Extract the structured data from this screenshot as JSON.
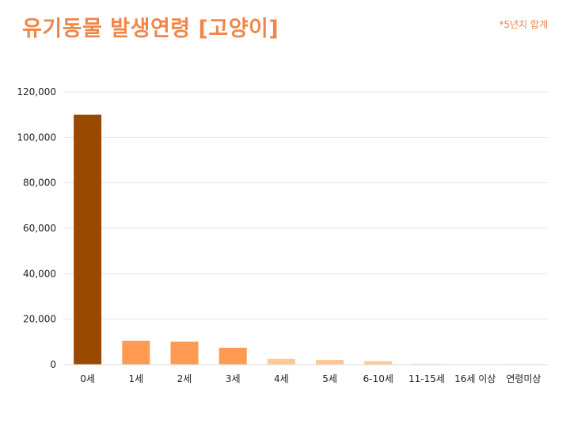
{
  "header": {
    "title": "유기동물 발생연령 [고양이]",
    "note": "*5년치 합계"
  },
  "chart_data": {
    "type": "bar",
    "categories": [
      "0세",
      "1세",
      "2세",
      "3세",
      "4세",
      "5세",
      "6-10세",
      "11-15세",
      "16세 이상",
      "연령미상"
    ],
    "values": [
      110000,
      10500,
      10100,
      7400,
      2500,
      2100,
      1500,
      400,
      100,
      200
    ],
    "bar_colors": [
      "#9a4a00",
      "#ff9a52",
      "#ff9a52",
      "#ff9a52",
      "#ffc896",
      "#ffc896",
      "#ffc896",
      "#ffe0c2",
      "#ffe0c2",
      "#ffe0c2"
    ],
    "ylim": [
      0,
      120000
    ],
    "yticks": [
      0,
      20000,
      40000,
      60000,
      80000,
      100000,
      120000
    ],
    "ytick_labels": [
      "0",
      "20,000",
      "40,000",
      "60,000",
      "80,000",
      "100,000",
      "120,000"
    ],
    "grid": true,
    "xlabel": "",
    "ylabel": "",
    "legend": "none"
  }
}
